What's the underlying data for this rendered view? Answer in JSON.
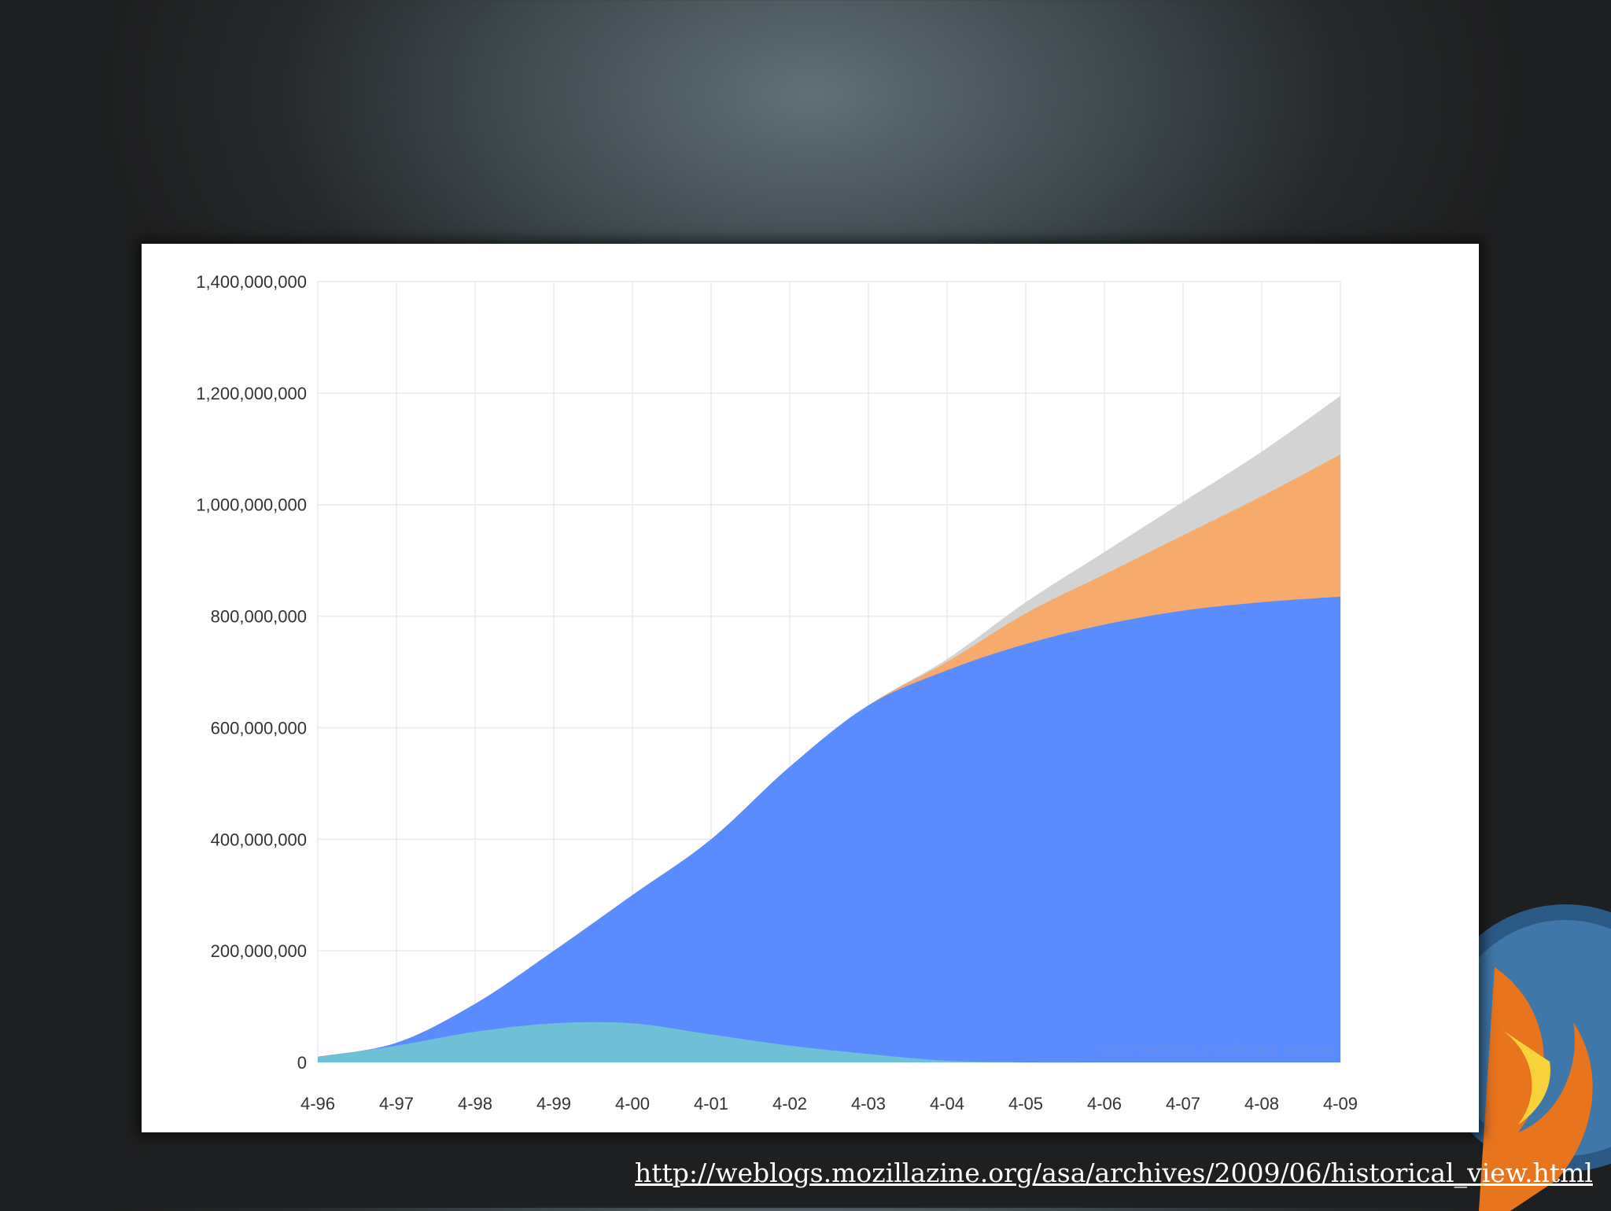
{
  "source_link": {
    "text": "http://weblogs.mozillazine.org/asa/archives/2009/06/historical_view.html"
  },
  "colors": {
    "series_ie": "#5b8cff",
    "series_netscape": "#6fbfd6",
    "series_firefox": "#f6ab6c",
    "series_other": "#d3d3d3",
    "grid": "#e8eaf0"
  },
  "chart_data": {
    "type": "area",
    "stacked": true,
    "title": "",
    "xlabel": "",
    "ylabel": "",
    "watermark": "http://weblogs.mozillazine.org/asa",
    "ylim": [
      0,
      1400000000
    ],
    "y_ticks": [
      0,
      200000000,
      400000000,
      600000000,
      800000000,
      1000000000,
      1200000000,
      1400000000
    ],
    "y_tick_labels": [
      "0",
      "200,000,000",
      "400,000,000",
      "600,000,000",
      "800,000,000",
      "1,000,000,000",
      "1,200,000,000",
      "1,400,000,000"
    ],
    "categories": [
      "4-96",
      "4-97",
      "4-98",
      "4-99",
      "4-00",
      "4-01",
      "4-02",
      "4-03",
      "4-04",
      "4-05",
      "4-06",
      "4-07",
      "4-08",
      "4-09"
    ],
    "grid": true,
    "legend": "none",
    "series": [
      {
        "values": [
          10000000,
          30000000,
          55000000,
          70000000,
          70000000,
          50000000,
          30000000,
          15000000,
          3000000,
          0,
          0,
          0,
          0,
          0
        ]
      },
      {
        "values": [
          0,
          5000000,
          50000000,
          130000000,
          230000000,
          350000000,
          500000000,
          625000000,
          700000000,
          750000000,
          785000000,
          810000000,
          825000000,
          835000000
        ]
      },
      {
        "values": [
          0,
          0,
          0,
          0,
          0,
          0,
          0,
          0,
          15000000,
          55000000,
          90000000,
          135000000,
          190000000,
          255000000
        ]
      },
      {
        "values": [
          0,
          0,
          0,
          0,
          0,
          0,
          0,
          0,
          5000000,
          20000000,
          40000000,
          60000000,
          80000000,
          105000000
        ]
      }
    ]
  }
}
